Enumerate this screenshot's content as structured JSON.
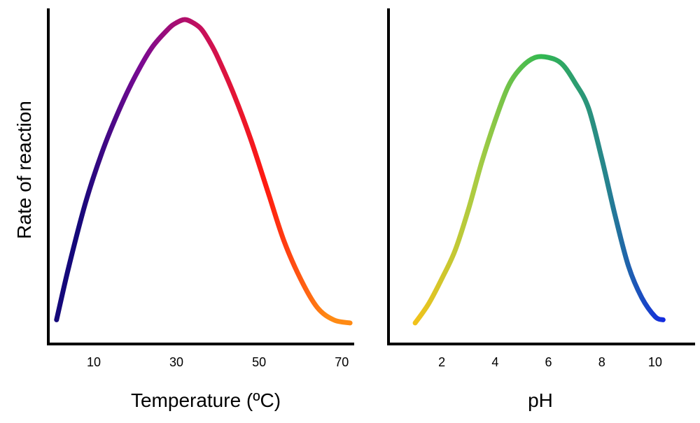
{
  "chart_data": [
    {
      "type": "line",
      "title": "",
      "xlabel": "Temperature (ºC)",
      "ylabel": "Rate of reaction",
      "y_ticks_shown": false,
      "xlim": [
        -1,
        73
      ],
      "ylim": [
        0,
        100
      ],
      "x_ticks": [
        10,
        30,
        50,
        70
      ],
      "grid": false,
      "legend": "none",
      "line_gradient": [
        "#14087a",
        "#7a0a92",
        "#c8105a",
        "#ff1a10",
        "#ff8a14"
      ],
      "series": [
        {
          "x": [
            1,
            4,
            8,
            12,
            16,
            20,
            24,
            28,
            30,
            32,
            34,
            36,
            38,
            40,
            44,
            48,
            52,
            56,
            60,
            64,
            68,
            72
          ],
          "y": [
            5,
            22,
            42,
            58,
            71,
            82,
            91,
            97,
            99,
            100,
            99,
            97,
            93,
            88,
            76,
            62,
            46,
            30,
            18,
            9,
            5,
            4
          ]
        }
      ]
    },
    {
      "type": "line",
      "title": "",
      "xlabel": "pH",
      "ylabel": "",
      "xlim": [
        0,
        11.5
      ],
      "ylim": [
        0,
        100
      ],
      "x_ticks": [
        2,
        4,
        6,
        8,
        10
      ],
      "grid": false,
      "legend": "none",
      "line_gradient": [
        "#f2c21a",
        "#a8cc44",
        "#32b850",
        "#27868c",
        "#1224e6"
      ],
      "series": [
        {
          "x": [
            1,
            1.5,
            2,
            2.5,
            3,
            3.5,
            4,
            4.5,
            5,
            5.5,
            6,
            6.5,
            7,
            7.5,
            8,
            8.5,
            9,
            9.5,
            10,
            10.3
          ],
          "y": [
            4,
            10,
            18,
            27,
            40,
            55,
            68,
            79,
            85,
            88,
            88,
            86,
            80,
            72,
            56,
            38,
            22,
            12,
            6,
            5
          ]
        }
      ]
    }
  ]
}
